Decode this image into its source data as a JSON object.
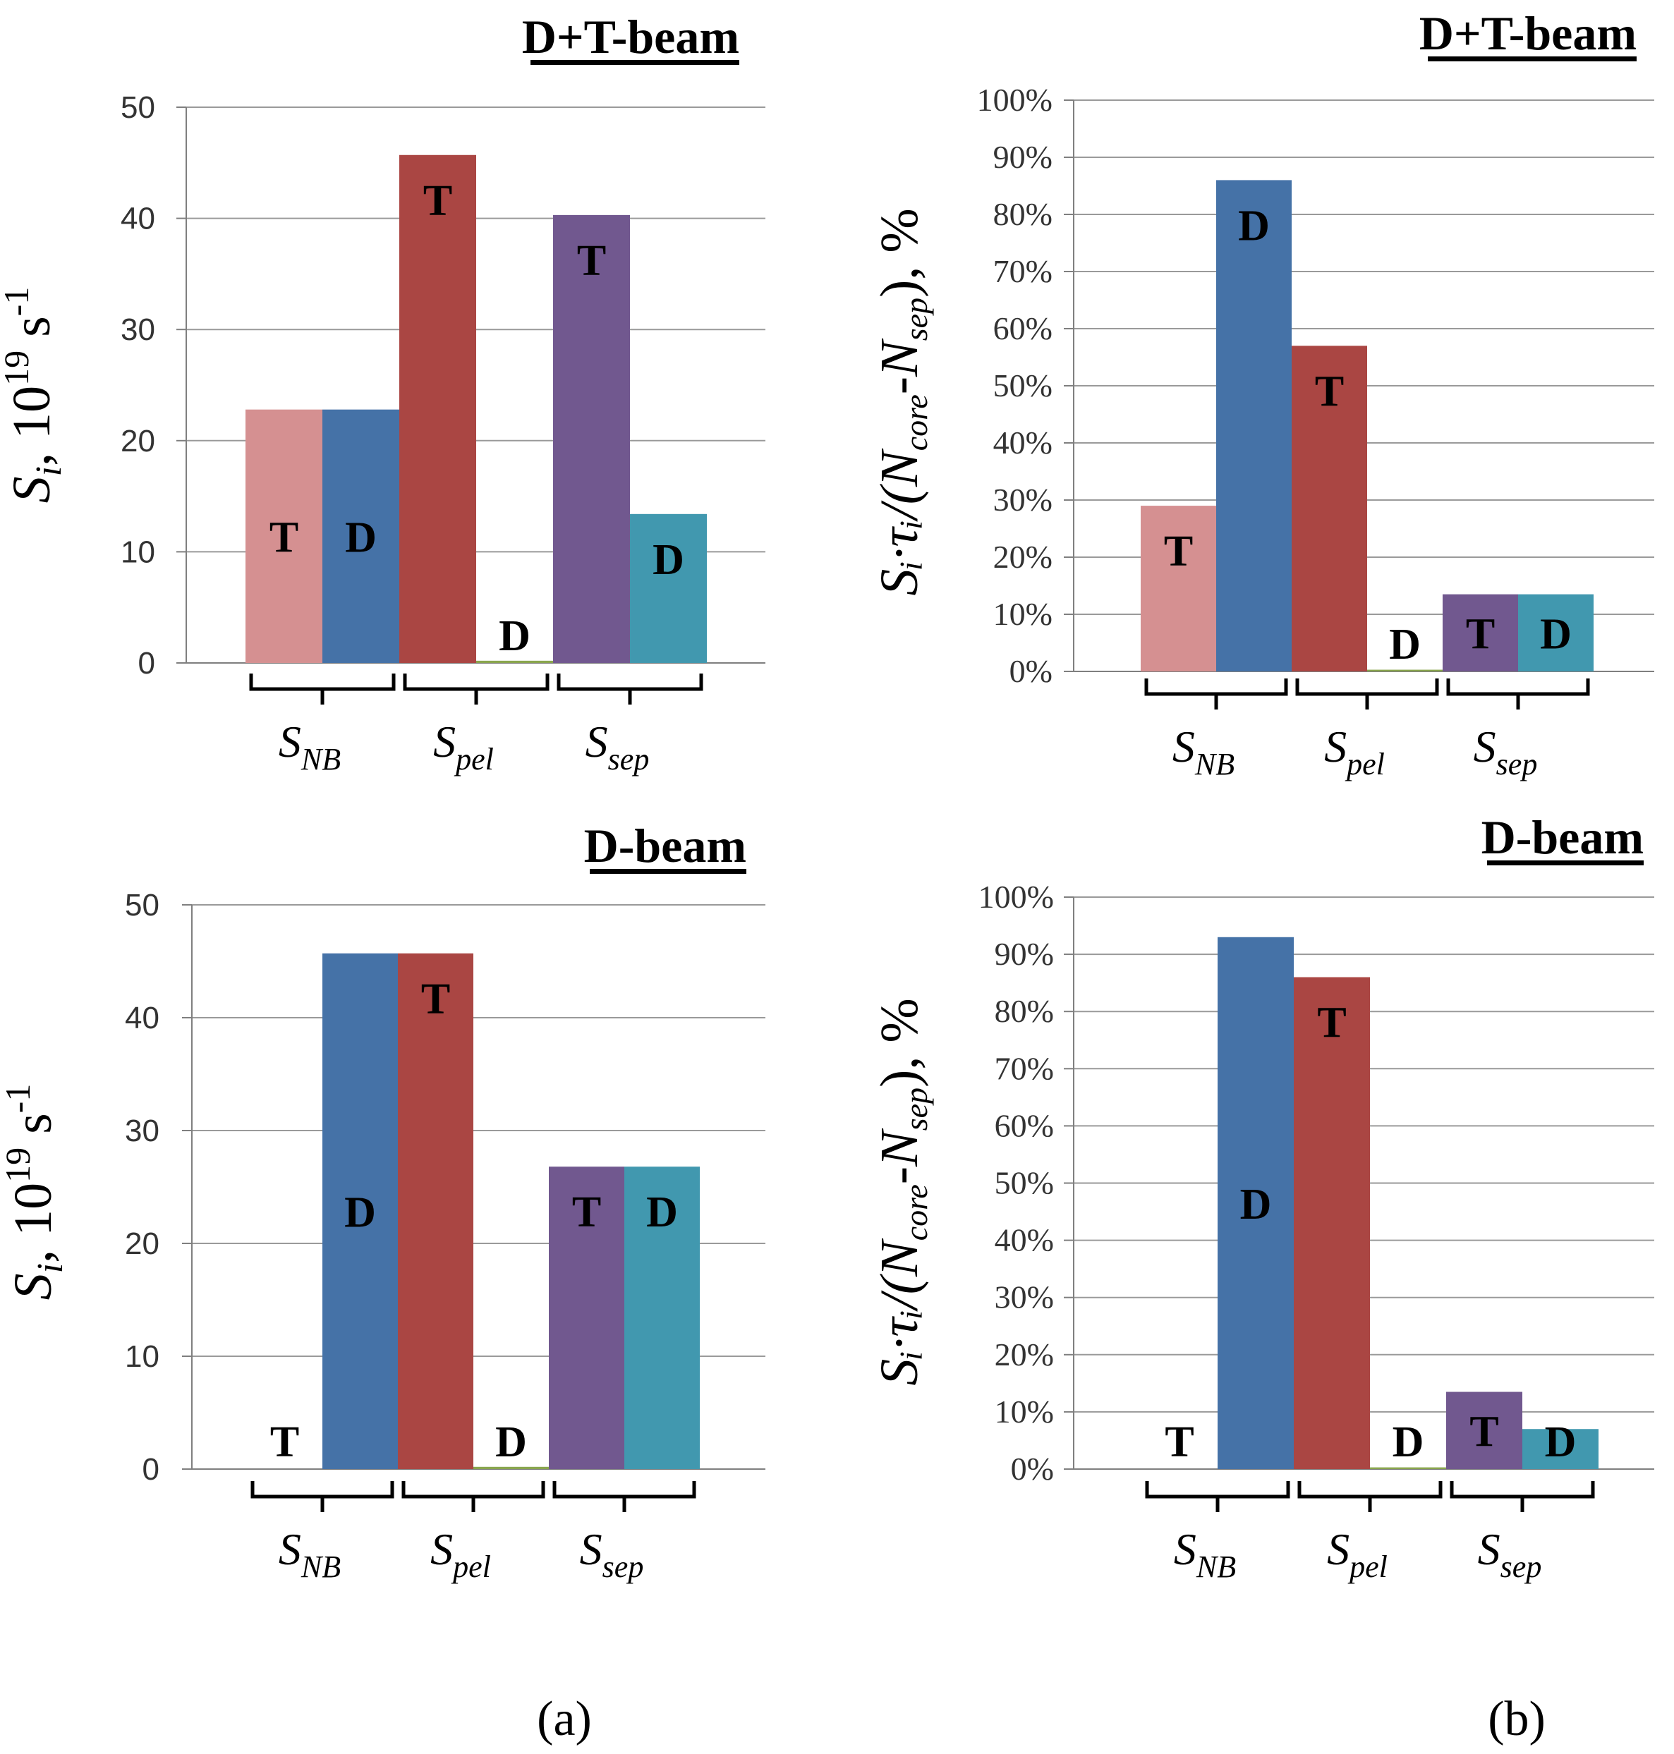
{
  "colors": {
    "T_NB": "#d59091",
    "D_NB": "#4572a7",
    "T_pel": "#aa4643",
    "D_pel": "#89a54e",
    "T_sep": "#71588f",
    "D_sep": "#4198af",
    "grid": "#9a9a9a",
    "axis": "#7f7f7f"
  },
  "panel_labels": {
    "a": "(a)",
    "b": "(b)"
  },
  "axis_labels": {
    "left_prefix": "S",
    "left_sub": "i",
    "left_unit": ", 10",
    "left_exp": "19",
    "left_s": " s",
    "left_s_exp": "-1",
    "right_full": "Sᵢ·τᵢ/(N",
    "right_core": "core",
    "right_mid": "-N",
    "right_sep": "sep",
    "right_tail": "), %"
  },
  "groups": [
    {
      "main": "S",
      "sub": "NB"
    },
    {
      "main": "S",
      "sub": "pel"
    },
    {
      "main": "S",
      "sub": "sep"
    }
  ],
  "chart_data": [
    {
      "type": "bar",
      "title": "D+T-beam",
      "ylabel": "S_i, 10^19 s^-1",
      "ylim": [
        0,
        50
      ],
      "yticks": [
        "0",
        "10",
        "20",
        "30",
        "40",
        "50"
      ],
      "categories": [
        "S_NB",
        "S_pel",
        "S_sep"
      ],
      "series": [
        {
          "name": "T",
          "values": [
            22.8,
            45.7,
            40.3
          ]
        },
        {
          "name": "D",
          "values": [
            22.8,
            0.2,
            13.4
          ]
        }
      ]
    },
    {
      "type": "bar",
      "title": "D+T-beam",
      "ylabel": "S_i·τ_i/(N_core-N_sep), %",
      "ylim": [
        0,
        100
      ],
      "yticks": [
        "0%",
        "10%",
        "20%",
        "30%",
        "40%",
        "50%",
        "60%",
        "70%",
        "80%",
        "90%",
        "100%"
      ],
      "categories": [
        "S_NB",
        "S_pel",
        "S_sep"
      ],
      "series": [
        {
          "name": "T",
          "values": [
            29,
            57,
            13.5
          ]
        },
        {
          "name": "D",
          "values": [
            86,
            0.3,
            13.5
          ]
        }
      ]
    },
    {
      "type": "bar",
      "title": "D-beam",
      "ylabel": "S_i, 10^19 s^-1",
      "ylim": [
        0,
        50
      ],
      "yticks": [
        "0",
        "10",
        "20",
        "30",
        "40",
        "50"
      ],
      "categories": [
        "S_NB",
        "S_pel",
        "S_sep"
      ],
      "series": [
        {
          "name": "T",
          "values": [
            0,
            45.7,
            26.8
          ]
        },
        {
          "name": "D",
          "values": [
            45.7,
            0.2,
            26.8
          ]
        }
      ]
    },
    {
      "type": "bar",
      "title": "D-beam",
      "ylabel": "S_i·τ_i/(N_core-N_sep), %",
      "ylim": [
        0,
        100
      ],
      "yticks": [
        "0%",
        "10%",
        "20%",
        "30%",
        "40%",
        "50%",
        "60%",
        "70%",
        "80%",
        "90%",
        "100%"
      ],
      "categories": [
        "S_NB",
        "S_pel",
        "S_sep"
      ],
      "series": [
        {
          "name": "T",
          "values": [
            0,
            86,
            13.5
          ]
        },
        {
          "name": "D",
          "values": [
            93,
            0.3,
            7
          ]
        }
      ]
    }
  ]
}
